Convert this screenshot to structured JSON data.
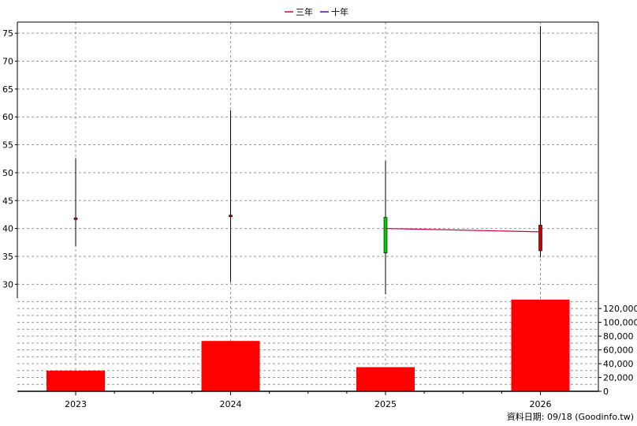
{
  "legend": [
    {
      "name": "三年",
      "color": "#cc0044"
    },
    {
      "name": "十年",
      "color": "#5500aa"
    }
  ],
  "source_note": "資料日期: 09/18  (Goodinfo.tw)",
  "chart_data": [
    {
      "type": "candlestick",
      "categories": [
        "2023",
        "2024",
        "2025",
        "2026"
      ],
      "ylim": [
        27.5,
        77
      ],
      "yticks": [
        30,
        35,
        40,
        45,
        50,
        55,
        60,
        65,
        70,
        75
      ],
      "grid": true,
      "candles": [
        {
          "x": "2023",
          "open": 41.6,
          "close": 41.9,
          "high": 52.6,
          "low": 36.8,
          "color": "#cc0000"
        },
        {
          "x": "2024",
          "open": 42.1,
          "close": 42.4,
          "high": 61.2,
          "low": 30.4,
          "color": "#cc0000"
        },
        {
          "x": "2025",
          "open": 42.0,
          "close": 35.6,
          "high": 52.1,
          "low": 28.2,
          "color": "#00cc00"
        },
        {
          "x": "2026",
          "open": 40.6,
          "close": 36.0,
          "high": 76.3,
          "low": 34.8,
          "color": "#cc0000"
        }
      ],
      "series": [
        {
          "name": "三年",
          "color": "#cc0044",
          "points": [
            [
              "2025",
              40.0
            ],
            [
              "2026",
              39.4
            ]
          ]
        }
      ]
    },
    {
      "type": "bar",
      "categories": [
        "2023",
        "2024",
        "2025",
        "2026"
      ],
      "values": [
        30000,
        73000,
        35000,
        133000
      ],
      "ylim": [
        0,
        135000
      ],
      "yticks": [
        0,
        20000,
        40000,
        60000,
        80000,
        100000,
        120000
      ],
      "ytick_labels": [
        "0",
        "20,000",
        "40,000",
        "60,000",
        "80,000",
        "100,000",
        "120,000"
      ],
      "color": "#ff0000",
      "grid": true
    }
  ]
}
